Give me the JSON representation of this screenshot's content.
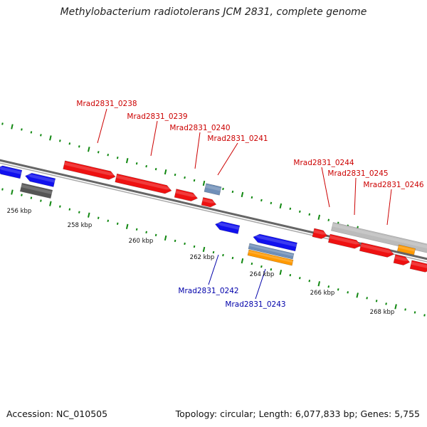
{
  "title": "Methylobacterium radiotolerans JCM 2831, complete genome",
  "footer": {
    "accession": "Accession: NC_010505",
    "topology": "Topology: circular; Length: 6,077,833 bp; Genes: 5,755"
  },
  "colors": {
    "forward_gene": "#ee1111",
    "reverse_gene": "#1111ee",
    "pseudo_gene": "#6f8fb8",
    "rna": "#ff9900",
    "gray_feature": "#bbbbbb",
    "dark_feature": "#555555",
    "tick": "#118811"
  },
  "kbp_labels": [
    "256 kbp",
    "258 kbp",
    "260 kbp",
    "262 kbp",
    "264 kbp",
    "266 kbp",
    "268 kbp"
  ],
  "gene_labels": [
    {
      "id": "Mrad2831_0238",
      "strand": "forward"
    },
    {
      "id": "Mrad2831_0239",
      "strand": "forward"
    },
    {
      "id": "Mrad2831_0240",
      "strand": "forward"
    },
    {
      "id": "Mrad2831_0241",
      "strand": "forward"
    },
    {
      "id": "Mrad2831_0244",
      "strand": "forward"
    },
    {
      "id": "Mrad2831_0245",
      "strand": "forward"
    },
    {
      "id": "Mrad2831_0246",
      "strand": "forward"
    },
    {
      "id": "Mrad2831_0242",
      "strand": "reverse"
    },
    {
      "id": "Mrad2831_0243",
      "strand": "reverse"
    }
  ]
}
